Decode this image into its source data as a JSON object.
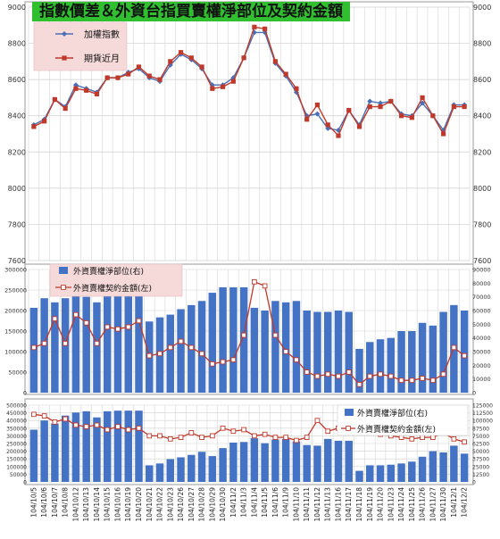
{
  "title": "指數價差＆外資台指買賣權淨部位及契約金額",
  "chart_data": [
    {
      "type": "line",
      "ylim": [
        7600,
        9000
      ],
      "yticks": [
        7600,
        7800,
        8000,
        8200,
        8400,
        8600,
        8800,
        9000
      ],
      "legend_position": "top-left",
      "series": [
        {
          "name": "加權指數",
          "color": "#4a6fb5",
          "values": [
            8350,
            8380,
            8490,
            8450,
            8570,
            8550,
            8530,
            8610,
            8610,
            8640,
            8660,
            8610,
            8590,
            8680,
            8740,
            8710,
            8660,
            8570,
            8570,
            8610,
            8720,
            8860,
            8860,
            8690,
            8620,
            8530,
            8400,
            8410,
            8330,
            8320,
            8430,
            8350,
            8480,
            8470,
            8480,
            8410,
            8400,
            8470,
            8400,
            8320,
            8460,
            8460
          ]
        },
        {
          "name": "期貨近月",
          "color": "#c0392b",
          "values": [
            8340,
            8370,
            8490,
            8440,
            8550,
            8540,
            8520,
            8610,
            8610,
            8630,
            8670,
            8620,
            8600,
            8700,
            8750,
            8720,
            8670,
            8550,
            8560,
            8590,
            8720,
            8890,
            8880,
            8700,
            8630,
            8550,
            8380,
            8460,
            8350,
            8290,
            8430,
            8340,
            8450,
            8450,
            8480,
            8400,
            8390,
            8500,
            8400,
            8300,
            8450,
            8450
          ]
        }
      ]
    },
    {
      "type": "bar",
      "ylim_left": [
        0,
        300000
      ],
      "ylim_right": [
        0,
        90000
      ],
      "yticks_left": [
        0,
        50000,
        100000,
        150000,
        200000,
        250000,
        300000
      ],
      "yticks_right": [
        0,
        10000,
        20000,
        30000,
        40000,
        50000,
        60000,
        70000,
        80000,
        90000
      ],
      "legend_position": "top-left",
      "series": [
        {
          "name": "外資賣權淨部位(右)",
          "kind": "bar",
          "axis": "right",
          "color": "#4472c4",
          "values": [
            62000,
            69000,
            66000,
            69000,
            71000,
            70000,
            66000,
            71000,
            71000,
            71000,
            71000,
            52000,
            55000,
            57000,
            61000,
            64000,
            67000,
            73000,
            77000,
            77000,
            77000,
            62000,
            60000,
            67000,
            66000,
            67000,
            60000,
            59000,
            59000,
            60000,
            59000,
            32000,
            37000,
            39000,
            40000,
            45000,
            45000,
            51000,
            49000,
            59000,
            64000,
            60000
          ]
        },
        {
          "name": "外資賣權契約金額(左)",
          "kind": "line",
          "axis": "left",
          "color": "#c0392b",
          "values": [
            110000,
            120000,
            180000,
            120000,
            190000,
            170000,
            120000,
            160000,
            155000,
            160000,
            175000,
            90000,
            95000,
            110000,
            125000,
            110000,
            95000,
            70000,
            75000,
            80000,
            140000,
            270000,
            260000,
            140000,
            100000,
            80000,
            50000,
            40000,
            45000,
            40000,
            50000,
            20000,
            40000,
            45000,
            40000,
            30000,
            30000,
            35000,
            30000,
            45000,
            110000,
            90000
          ]
        }
      ]
    },
    {
      "type": "bar",
      "ylim_left": [
        0,
        500000
      ],
      "ylim_right": [
        0,
        125000
      ],
      "yticks_left": [
        0,
        50000,
        100000,
        150000,
        200000,
        250000,
        300000,
        350000,
        400000,
        450000,
        500000
      ],
      "yticks_right": [
        0,
        12500,
        25000,
        37500,
        50000,
        62500,
        75000,
        87500,
        100000,
        112500,
        125000
      ],
      "legend_position": "top-right",
      "series": [
        {
          "name": "外資賣權淨部位(右)",
          "kind": "bar",
          "axis": "right",
          "color": "#4472c4",
          "values": [
            85000,
            100000,
            95000,
            108000,
            113000,
            115000,
            105000,
            115000,
            116000,
            116000,
            116000,
            27000,
            30000,
            37000,
            40000,
            44000,
            49000,
            42000,
            55000,
            64000,
            65000,
            71000,
            63000,
            69000,
            70000,
            66000,
            60000,
            59000,
            70000,
            67000,
            67000,
            18000,
            27000,
            27000,
            28000,
            30000,
            33000,
            41000,
            50000,
            48000,
            59000,
            46000
          ]
        },
        {
          "name": "外資賣權契約金額(左)",
          "kind": "line",
          "axis": "left",
          "color": "#c0392b",
          "values": [
            440000,
            430000,
            390000,
            410000,
            370000,
            360000,
            370000,
            340000,
            360000,
            340000,
            350000,
            300000,
            300000,
            280000,
            290000,
            320000,
            290000,
            300000,
            350000,
            330000,
            340000,
            300000,
            310000,
            290000,
            290000,
            270000,
            290000,
            400000,
            330000,
            350000,
            400000,
            340000,
            330000,
            310000,
            300000,
            290000,
            280000,
            290000,
            290000,
            320000,
            280000,
            260000
          ]
        }
      ]
    }
  ],
  "dates": [
    "104/10/5",
    "104/10/6",
    "104/10/7",
    "104/10/8",
    "104/10/12",
    "104/10/13",
    "104/10/14",
    "104/10/15",
    "104/10/16",
    "104/10/19",
    "104/10/20",
    "104/10/21",
    "104/10/22",
    "104/10/23",
    "104/10/26",
    "104/10/27",
    "104/10/28",
    "104/10/29",
    "104/10/30",
    "104/11/2",
    "104/11/3",
    "104/11/4",
    "104/11/5",
    "104/11/6",
    "104/11/9",
    "104/11/10",
    "104/11/11",
    "104/11/12",
    "104/11/13",
    "104/11/16",
    "104/11/17",
    "104/11/18",
    "104/11/19",
    "104/11/20",
    "104/11/23",
    "104/11/24",
    "104/11/25",
    "104/11/26",
    "104/11/27",
    "104/11/30",
    "104/12/1",
    "104/12/2"
  ]
}
